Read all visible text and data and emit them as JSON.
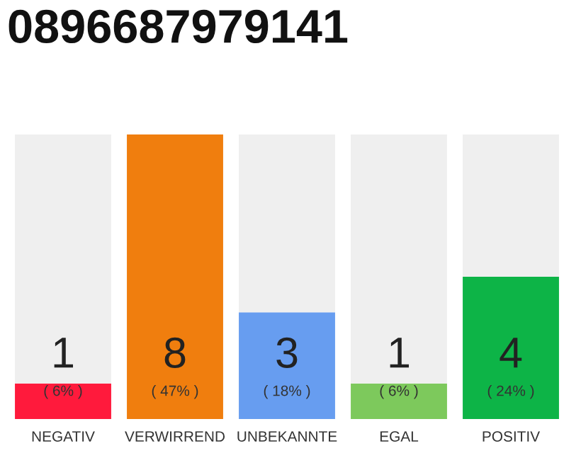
{
  "chart_data": {
    "type": "bar",
    "title": "0896687979141",
    "stacked": true,
    "categories": [
      "NEGATIV",
      "VERWIRREND",
      "UNBEKANNTE",
      "EGAL",
      "POSITIV"
    ],
    "series": [
      {
        "colors": [
          "#ff1a3c",
          "#f07e0e",
          "#679df0",
          "#7dc95c",
          "#0db447"
        ],
        "values": [
          1,
          8,
          3,
          1,
          4
        ],
        "value_labels": [
          "1",
          "8",
          "3",
          "1",
          "4"
        ]
      },
      {
        "color": "#efefef",
        "values": [
          7,
          0,
          5,
          7,
          4
        ],
        "value_labels": [
          null,
          null,
          null,
          null,
          null
        ]
      }
    ],
    "annotations": [
      "( 6% )",
      "( 47% )",
      "( 18% )",
      "( 6% )",
      "( 24% )"
    ],
    "grid": false,
    "legend": false
  }
}
